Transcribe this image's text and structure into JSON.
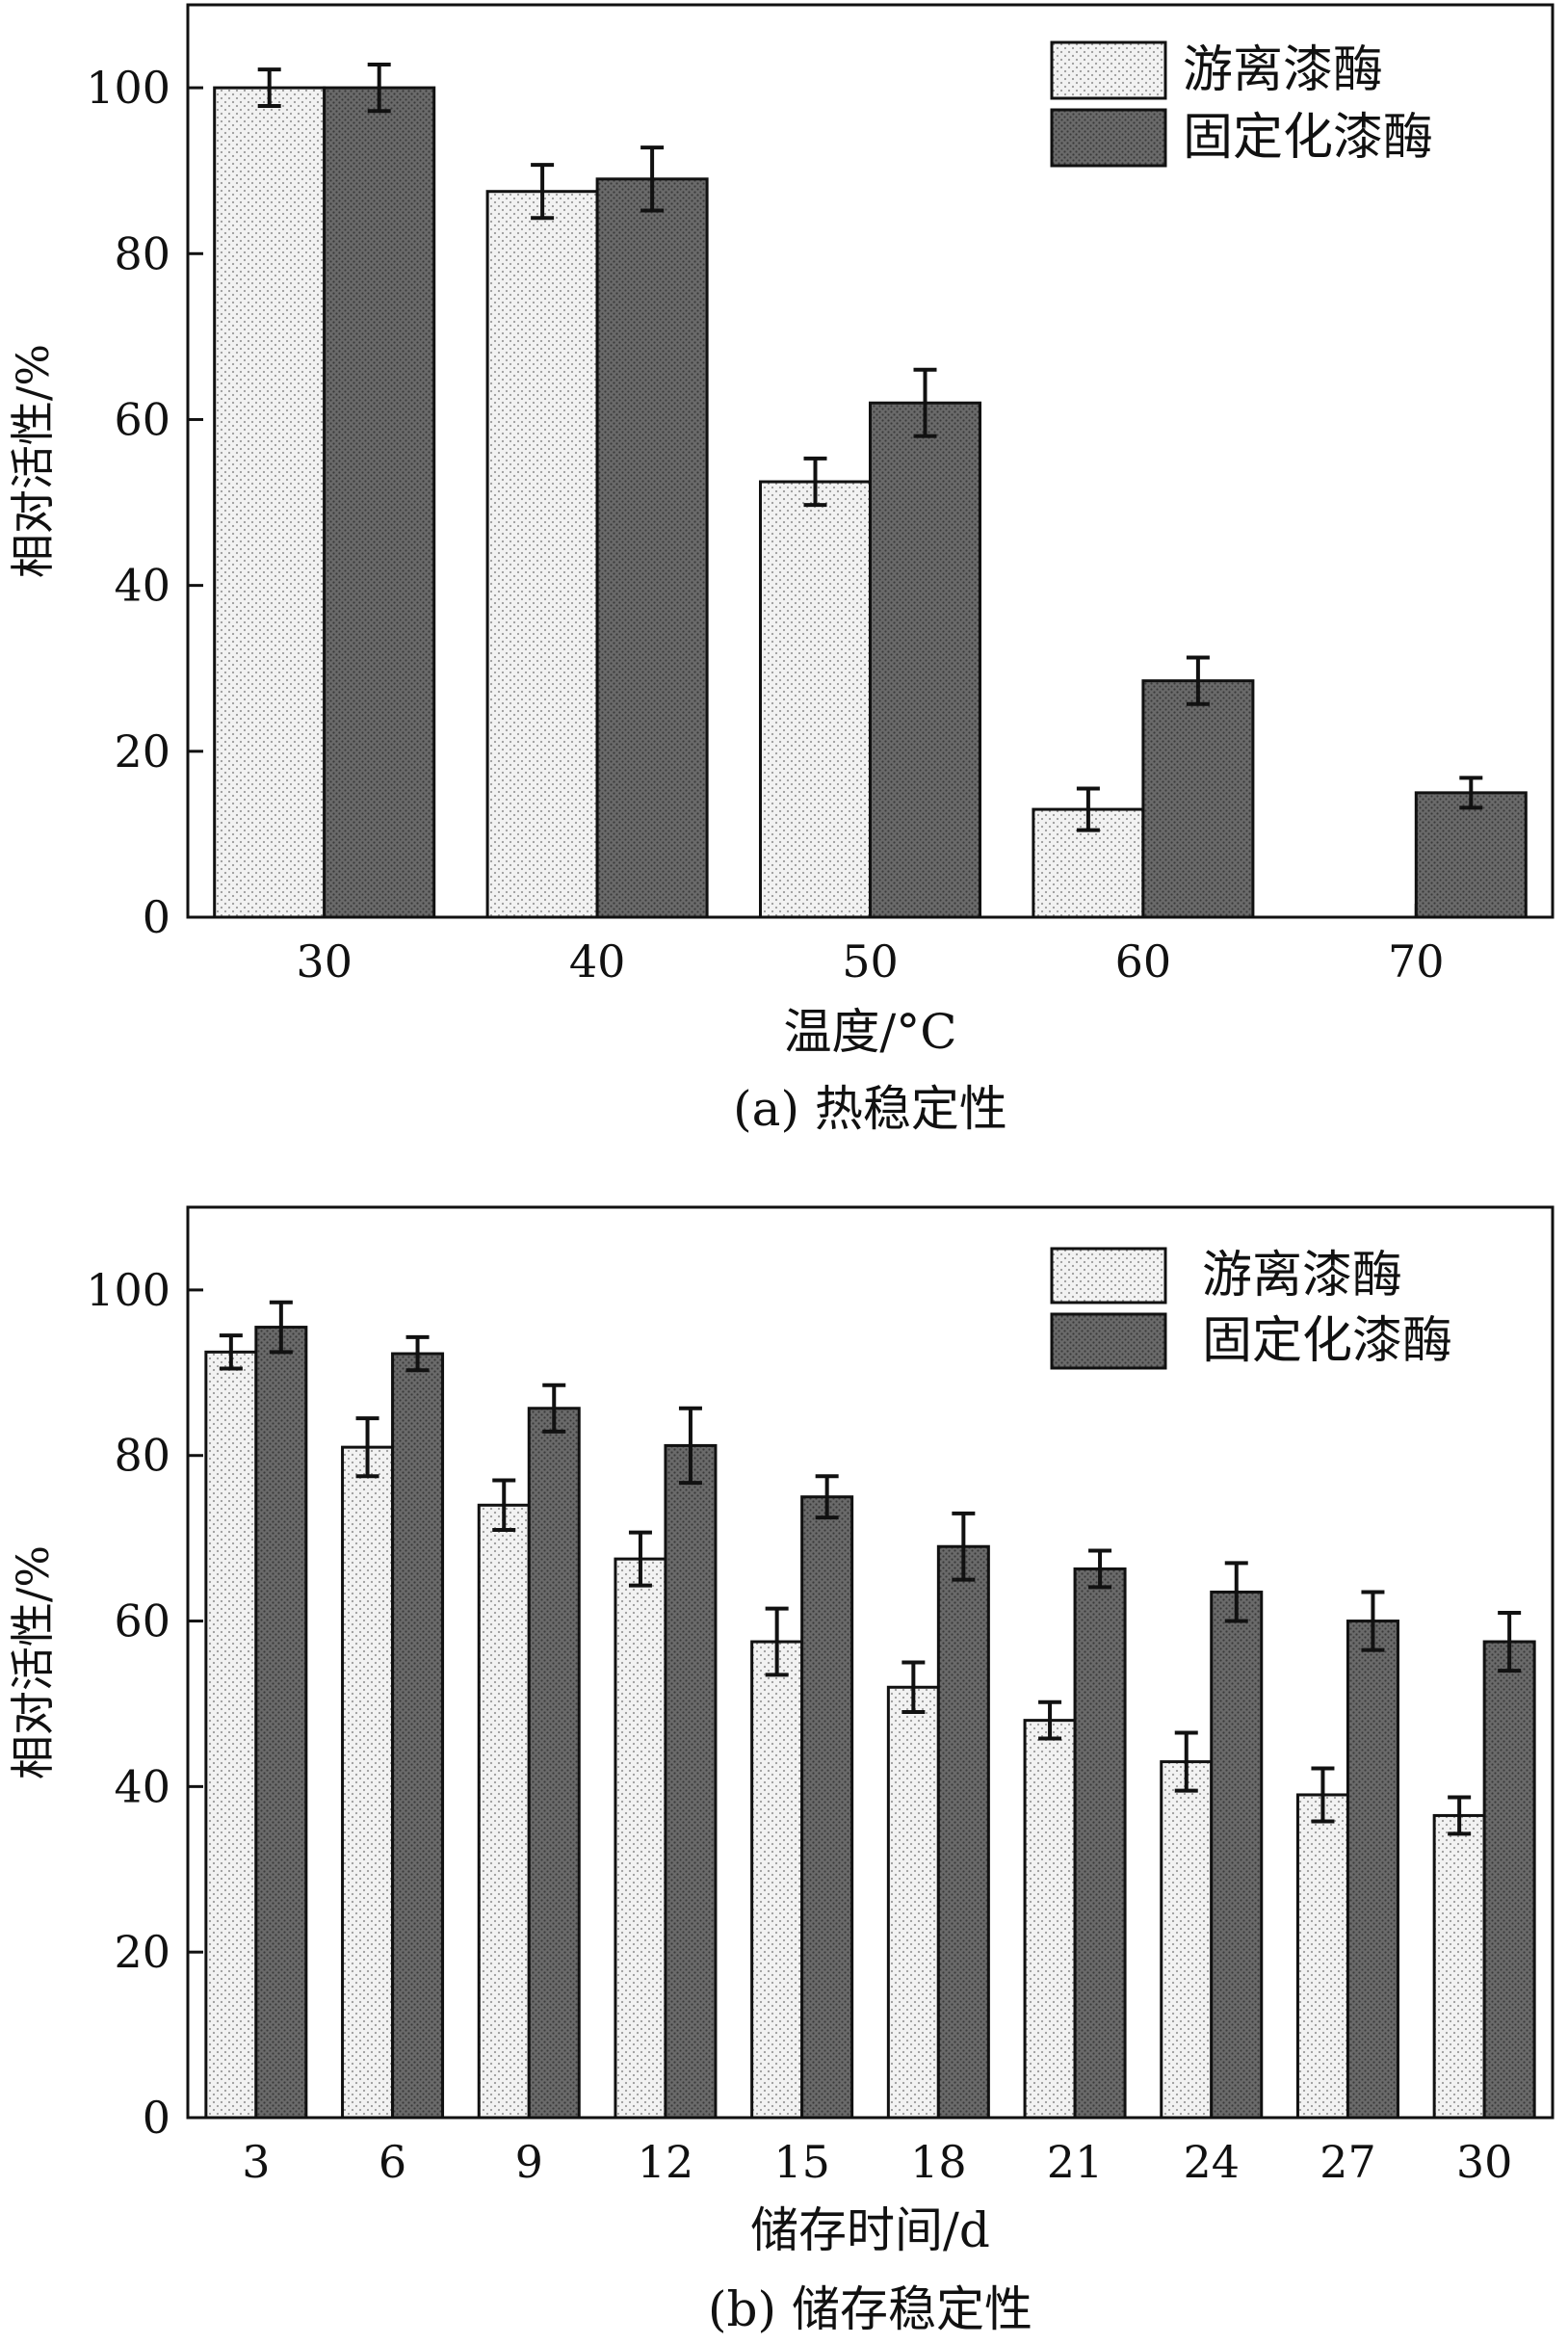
{
  "colors": {
    "free_bar": "#f2f2f2",
    "free_dot": "#9a9a9a",
    "immobilized_bar": "#6a6a6a",
    "immobilized_dot": "#3a3a3a",
    "axis": "#111111"
  },
  "chart_data": [
    {
      "type": "bar",
      "panel": "a",
      "caption": "(a) 热稳定性",
      "xlabel": "温度/°C",
      "ylabel": "相对活性/%",
      "categories": [
        "30",
        "40",
        "50",
        "60",
        "70"
      ],
      "ylim": [
        0,
        110
      ],
      "yticks": [
        0,
        20,
        40,
        60,
        80,
        100
      ],
      "grid": false,
      "legend_position": "top-right",
      "series": [
        {
          "name": "游离漆酶",
          "values": [
            100,
            87.5,
            52.5,
            13,
            null
          ],
          "errors": [
            2.2,
            3.2,
            2.8,
            2.5,
            null
          ]
        },
        {
          "name": "固定化漆酶",
          "values": [
            100,
            89,
            62,
            28.5,
            15
          ],
          "errors": [
            2.8,
            3.8,
            4,
            2.8,
            1.8
          ]
        }
      ]
    },
    {
      "type": "bar",
      "panel": "b",
      "caption": "(b) 储存稳定性",
      "xlabel": "储存时间/d",
      "ylabel": "相对活性/%",
      "categories": [
        "3",
        "6",
        "9",
        "12",
        "15",
        "18",
        "21",
        "24",
        "27",
        "30"
      ],
      "ylim": [
        0,
        110
      ],
      "yticks": [
        0,
        20,
        40,
        60,
        80,
        100
      ],
      "grid": false,
      "legend_position": "top-right",
      "series": [
        {
          "name": "游离漆酶",
          "values": [
            92.5,
            81,
            74,
            67.5,
            57.5,
            52,
            48,
            43,
            39,
            36.5
          ],
          "errors": [
            2,
            3.5,
            3,
            3.2,
            4,
            3,
            2.2,
            3.5,
            3.2,
            2.2
          ]
        },
        {
          "name": "固定化漆酶",
          "values": [
            95.5,
            92.3,
            85.7,
            81.2,
            75,
            69,
            66.3,
            63.5,
            60,
            57.5
          ],
          "errors": [
            3,
            2,
            2.8,
            4.5,
            2.5,
            4,
            2.2,
            3.5,
            3.5,
            3.5
          ]
        }
      ]
    }
  ]
}
